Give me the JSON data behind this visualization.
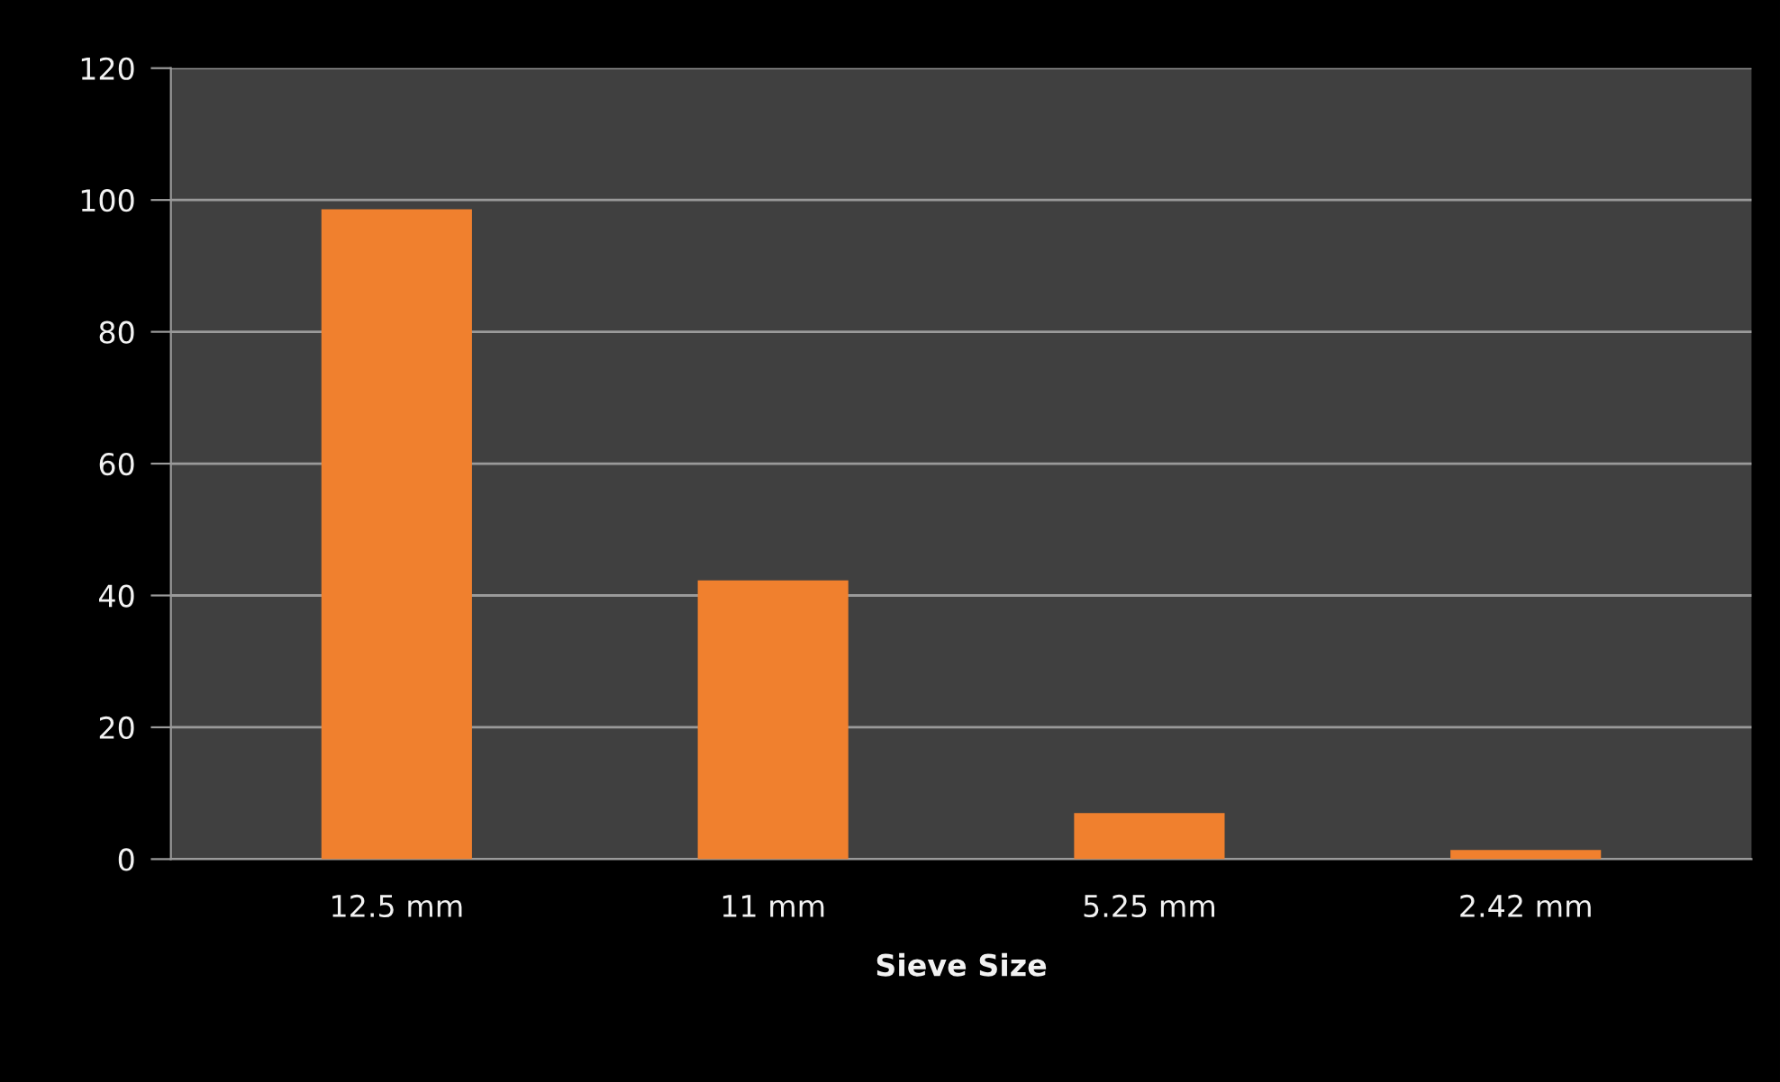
{
  "chart_data": {
    "type": "bar",
    "xlabel": "Sieve Size",
    "categories": [
      "12.5 mm",
      "11 mm",
      "5.25 mm",
      "2.42 mm"
    ],
    "values": [
      98.6,
      42.3,
      7.0,
      1.4
    ],
    "color": "#f0802e",
    "ylim": [
      0,
      120
    ],
    "yticks": [
      0,
      20,
      40,
      60,
      80,
      100,
      120
    ],
    "grid": "y",
    "legend": false
  }
}
